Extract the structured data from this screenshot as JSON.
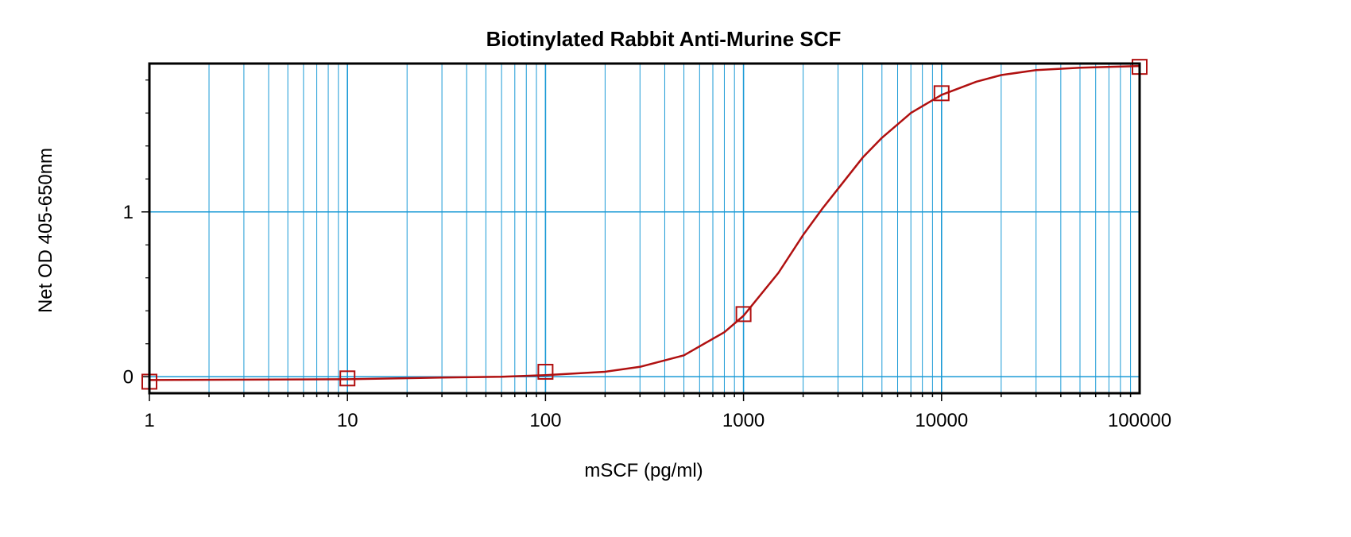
{
  "chart_data": {
    "type": "scatter",
    "title": "Biotinylated Rabbit Anti-Murine SCF",
    "xlabel": "mSCF (pg/ml)",
    "ylabel": "Net OD 405-650nm",
    "x_scale": "log",
    "xlim": [
      1,
      100000
    ],
    "ylim": [
      -0.1,
      1.9
    ],
    "x_ticks": [
      "1",
      "10",
      "100",
      "1000",
      "10000",
      "100000"
    ],
    "x_tick_values": [
      1,
      10,
      100,
      1000,
      10000,
      100000
    ],
    "y_ticks": [
      "0",
      "1"
    ],
    "y_tick_values": [
      0,
      1
    ],
    "grid": true,
    "grid_color": "#1a9ad6",
    "series_color": "#b01010",
    "series": [
      {
        "marker": "open-square",
        "points": [
          {
            "x": 1,
            "y": -0.03
          },
          {
            "x": 10,
            "y": -0.01
          },
          {
            "x": 100,
            "y": 0.03
          },
          {
            "x": 1000,
            "y": 0.38
          },
          {
            "x": 10000,
            "y": 1.72
          },
          {
            "x": 100000,
            "y": 1.88
          }
        ],
        "fit_curve": [
          {
            "x": 1,
            "y": -0.02
          },
          {
            "x": 10,
            "y": -0.015
          },
          {
            "x": 30,
            "y": -0.005
          },
          {
            "x": 60,
            "y": 0.0
          },
          {
            "x": 100,
            "y": 0.01
          },
          {
            "x": 200,
            "y": 0.03
          },
          {
            "x": 300,
            "y": 0.06
          },
          {
            "x": 500,
            "y": 0.13
          },
          {
            "x": 800,
            "y": 0.27
          },
          {
            "x": 1000,
            "y": 0.37
          },
          {
            "x": 1500,
            "y": 0.63
          },
          {
            "x": 2000,
            "y": 0.86
          },
          {
            "x": 2500,
            "y": 1.02
          },
          {
            "x": 3000,
            "y": 1.14
          },
          {
            "x": 4000,
            "y": 1.33
          },
          {
            "x": 5000,
            "y": 1.45
          },
          {
            "x": 7000,
            "y": 1.6
          },
          {
            "x": 10000,
            "y": 1.71
          },
          {
            "x": 15000,
            "y": 1.79
          },
          {
            "x": 20000,
            "y": 1.83
          },
          {
            "x": 30000,
            "y": 1.86
          },
          {
            "x": 50000,
            "y": 1.875
          },
          {
            "x": 100000,
            "y": 1.885
          }
        ]
      }
    ]
  }
}
